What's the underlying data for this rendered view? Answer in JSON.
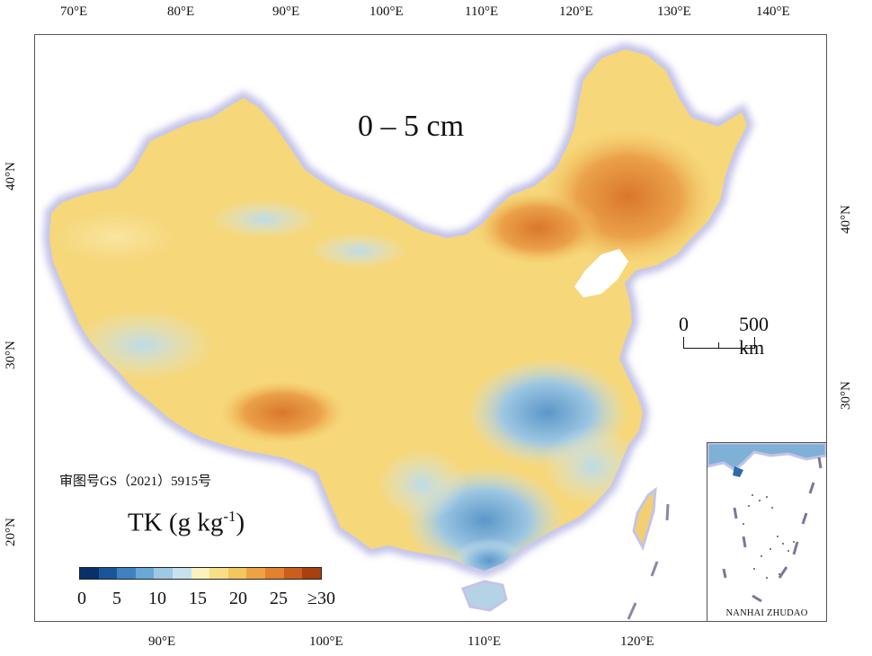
{
  "map": {
    "depth_title": "0 – 5 cm",
    "variable": "TK (g kg",
    "variable_exp": "-1",
    "variable_close": ")",
    "approval_number": "审图号GS（2021）5915号",
    "inset_label": "NANHAI ZHUDAO",
    "scale_bar": {
      "zero": "0",
      "distance": "500 km"
    }
  },
  "axes": {
    "top": [
      "70°E",
      "80°E",
      "90°E",
      "100°E",
      "110°E",
      "120°E",
      "130°E",
      "140°E"
    ],
    "bottom": [
      "90°E",
      "100°E",
      "110°E",
      "120°E"
    ],
    "left": [
      "40°N",
      "30°N",
      "20°N"
    ],
    "right": [
      "40°N",
      "30°N"
    ]
  },
  "legend": {
    "ticks": [
      "0",
      "5",
      "10",
      "15",
      "20",
      "25",
      "≥30"
    ],
    "colors": [
      "#08306b",
      "#1a5599",
      "#3f82be",
      "#6aa9d6",
      "#9dc9e4",
      "#c6e2ef",
      "#fbf2bd",
      "#f8df86",
      "#f3c75d",
      "#eca443",
      "#e2812e",
      "#cc5d1c",
      "#a8400f"
    ]
  },
  "colors": {
    "outline_glow": "#c4c3e8",
    "land_base": "#f6d77a"
  }
}
